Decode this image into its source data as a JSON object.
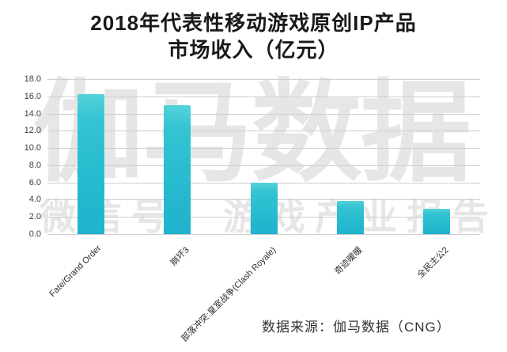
{
  "title": {
    "line1": "2018年代表性移动游戏原创IP产品",
    "line2": "市场收入（亿元）"
  },
  "watermark": {
    "line1": "伽马数据",
    "line2": "微信号：游戏产业报告",
    "color": "#e6e6e6"
  },
  "source": "数据来源：伽马数据（CNG）",
  "chart_data": {
    "type": "bar",
    "title": "2018年代表性移动游戏原创IP产品市场收入（亿元）",
    "categories": [
      "Fate/Grand Order",
      "崩坏3",
      "部落冲突:皇室战争(Clash Royale)",
      "奇迹暖暖",
      "全民主公2"
    ],
    "values": [
      16.3,
      15.0,
      6.0,
      3.9,
      2.9
    ],
    "xlabel": "",
    "ylabel": "",
    "ylim": [
      0,
      18
    ],
    "ytick_step": 2,
    "yticks": [
      "18.0",
      "16.0",
      "14.0",
      "12.0",
      "10.0",
      "8.0",
      "6.0",
      "4.0",
      "2.0",
      "0.0"
    ],
    "grid": true,
    "legend": "none",
    "bar_color_top": "#55d2d9",
    "bar_color_bottom": "#1fb3cd",
    "gridline_color": "#cfcfcf"
  }
}
